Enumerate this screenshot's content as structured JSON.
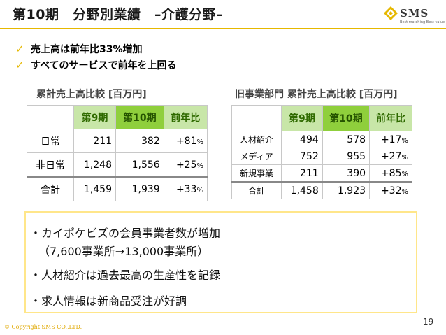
{
  "title": "第10期　分野別業績　–介護分野–",
  "logo": {
    "name": "SMS",
    "tagline": "Best matching Best value"
  },
  "bullets": [
    "売上高は前年比33%増加",
    "すべてのサービスで前年を上回る"
  ],
  "table1": {
    "caption": "累計売上高比較 [百万円]",
    "headers": [
      "第9期",
      "第10期",
      "前年比"
    ],
    "rows": [
      {
        "label": "日常",
        "v9": "211",
        "v10": "382",
        "yoy": "+81",
        "unit": "%"
      },
      {
        "label": "非日常",
        "v9": "1,248",
        "v10": "1,556",
        "yoy": "+25",
        "unit": "%"
      },
      {
        "label": "合計",
        "v9": "1,459",
        "v10": "1,939",
        "yoy": "+33",
        "unit": "%"
      }
    ]
  },
  "table2": {
    "caption": "旧事業部門 累計売上高比較 [百万円]",
    "headers": [
      "第9期",
      "第10期",
      "前年比"
    ],
    "rows": [
      {
        "label": "人材紹介",
        "v9": "494",
        "v10": "578",
        "yoy": "+17",
        "unit": "%"
      },
      {
        "label": "メディア",
        "v9": "752",
        "v10": "955",
        "yoy": "+27",
        "unit": "%"
      },
      {
        "label": "新規事業",
        "v9": "211",
        "v10": "390",
        "yoy": "+85",
        "unit": "%"
      },
      {
        "label": "合計",
        "v9": "1,458",
        "v10": "1,923",
        "yoy": "+32",
        "unit": "%"
      }
    ]
  },
  "notes": [
    "・カイポケビズの会員事業者数が増加",
    "（7,600事業所→13,000事業所）",
    "・人材紹介は過去最高の生産性を記録",
    "・求人情報は新商品受注が好調"
  ],
  "page_number": "19",
  "copyright": "© Copyright SMS CO.,LTD."
}
